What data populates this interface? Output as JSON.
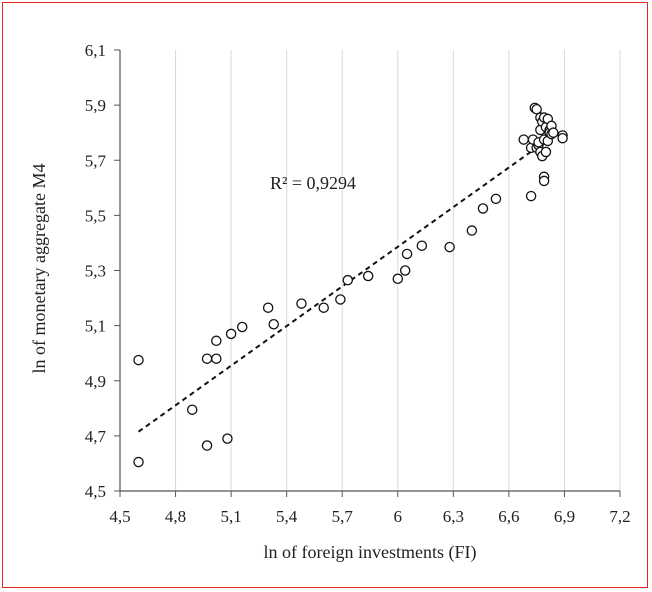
{
  "chart_data": {
    "type": "scatter",
    "xlabel": "ln of foreign investments (FI)",
    "ylabel": "ln of monetary aggregate M4",
    "xlim": [
      4.5,
      7.2
    ],
    "ylim": [
      4.5,
      6.1
    ],
    "xticks": [
      "4,5",
      "4,8",
      "5,1",
      "5,4",
      "5,7",
      "6",
      "6,3",
      "6,6",
      "6,9",
      "7,2"
    ],
    "yticks": [
      "4,5",
      "4,7",
      "4,9",
      "5,1",
      "5,3",
      "5,5",
      "5,7",
      "5,9",
      "6,1"
    ],
    "grid": "vertical",
    "marker": "open-circle",
    "trendline": {
      "style": "dashed",
      "x": [
        4.6,
        6.78
      ],
      "y": [
        4.715,
        5.76
      ]
    },
    "r2_label": "R² = 0,9294",
    "points": [
      {
        "x": 4.6,
        "y": 4.605
      },
      {
        "x": 4.6,
        "y": 4.975
      },
      {
        "x": 4.89,
        "y": 4.795
      },
      {
        "x": 4.97,
        "y": 4.665
      },
      {
        "x": 4.97,
        "y": 4.98
      },
      {
        "x": 5.02,
        "y": 4.98
      },
      {
        "x": 5.02,
        "y": 5.045
      },
      {
        "x": 5.08,
        "y": 4.69
      },
      {
        "x": 5.1,
        "y": 5.07
      },
      {
        "x": 5.16,
        "y": 5.095
      },
      {
        "x": 5.3,
        "y": 5.165
      },
      {
        "x": 5.33,
        "y": 5.105
      },
      {
        "x": 5.48,
        "y": 5.18
      },
      {
        "x": 5.6,
        "y": 5.165
      },
      {
        "x": 5.69,
        "y": 5.195
      },
      {
        "x": 5.73,
        "y": 5.265
      },
      {
        "x": 5.84,
        "y": 5.28
      },
      {
        "x": 6.0,
        "y": 5.27
      },
      {
        "x": 6.04,
        "y": 5.3
      },
      {
        "x": 6.05,
        "y": 5.36
      },
      {
        "x": 6.13,
        "y": 5.39
      },
      {
        "x": 6.28,
        "y": 5.385
      },
      {
        "x": 6.4,
        "y": 5.445
      },
      {
        "x": 6.46,
        "y": 5.525
      },
      {
        "x": 6.53,
        "y": 5.56
      },
      {
        "x": 6.68,
        "y": 5.775
      },
      {
        "x": 6.72,
        "y": 5.57
      },
      {
        "x": 6.72,
        "y": 5.745
      },
      {
        "x": 6.73,
        "y": 5.775
      },
      {
        "x": 6.74,
        "y": 5.89
      },
      {
        "x": 6.75,
        "y": 5.885
      },
      {
        "x": 6.75,
        "y": 5.745
      },
      {
        "x": 6.76,
        "y": 5.755
      },
      {
        "x": 6.76,
        "y": 5.765
      },
      {
        "x": 6.77,
        "y": 5.855
      },
      {
        "x": 6.77,
        "y": 5.81
      },
      {
        "x": 6.77,
        "y": 5.73
      },
      {
        "x": 6.78,
        "y": 5.715
      },
      {
        "x": 6.78,
        "y": 5.84
      },
      {
        "x": 6.79,
        "y": 5.775
      },
      {
        "x": 6.79,
        "y": 5.64
      },
      {
        "x": 6.79,
        "y": 5.625
      },
      {
        "x": 6.79,
        "y": 5.855
      },
      {
        "x": 6.8,
        "y": 5.82
      },
      {
        "x": 6.8,
        "y": 5.73
      },
      {
        "x": 6.81,
        "y": 5.85
      },
      {
        "x": 6.81,
        "y": 5.77
      },
      {
        "x": 6.82,
        "y": 5.81
      },
      {
        "x": 6.82,
        "y": 5.8
      },
      {
        "x": 6.83,
        "y": 5.825
      },
      {
        "x": 6.83,
        "y": 5.795
      },
      {
        "x": 6.84,
        "y": 5.8
      },
      {
        "x": 6.89,
        "y": 5.79
      },
      {
        "x": 6.89,
        "y": 5.78
      }
    ]
  }
}
